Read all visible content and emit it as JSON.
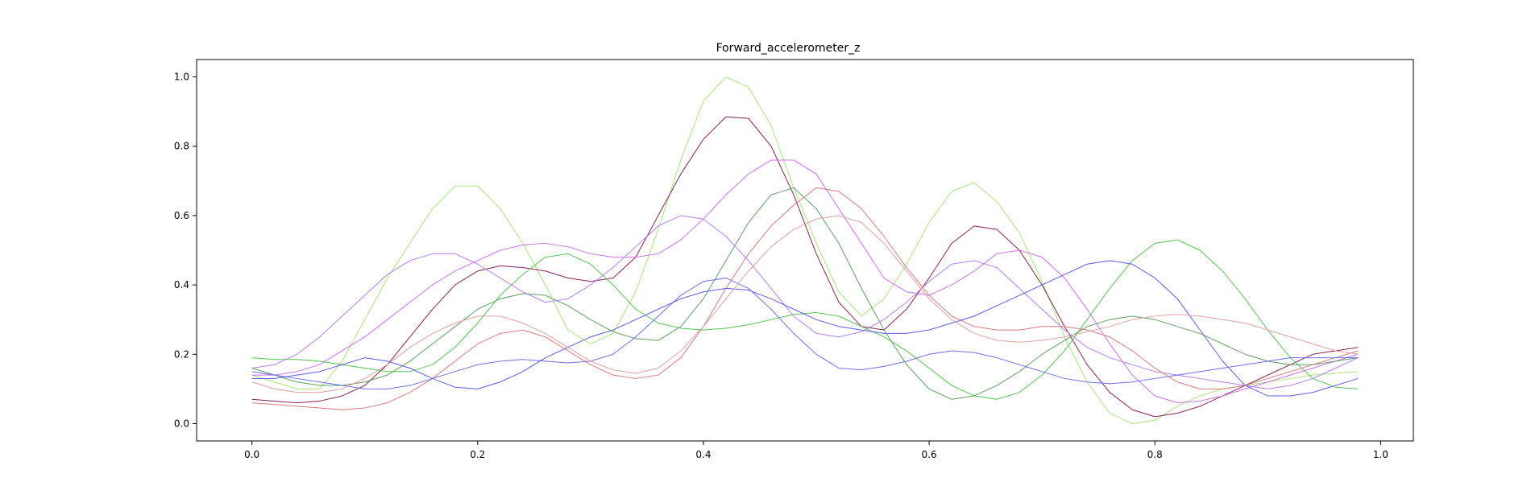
{
  "chart_data": {
    "type": "line",
    "title": "Forward_accelerometer_z",
    "xlabel": "",
    "ylabel": "",
    "xlim": [
      -0.049,
      1.029
    ],
    "ylim": [
      -0.05,
      1.05
    ],
    "xticks": [
      0.0,
      0.2,
      0.4,
      0.6,
      0.8,
      1.0
    ],
    "xtick_labels": [
      "0.0",
      "0.2",
      "0.4",
      "0.6",
      "0.8",
      "1.0"
    ],
    "yticks": [
      0.0,
      0.2,
      0.4,
      0.6,
      0.8,
      1.0
    ],
    "ytick_labels": [
      "0.0",
      "0.2",
      "0.4",
      "0.6",
      "0.8",
      "1.0"
    ],
    "grid": false,
    "legend": "none",
    "x": [
      0.0,
      0.02,
      0.04,
      0.06,
      0.08,
      0.1,
      0.12,
      0.14,
      0.16,
      0.18,
      0.2,
      0.22,
      0.24,
      0.26,
      0.28,
      0.3,
      0.32,
      0.34,
      0.36,
      0.38,
      0.4,
      0.42,
      0.44,
      0.46,
      0.48,
      0.5,
      0.52,
      0.54,
      0.56,
      0.58,
      0.6,
      0.62,
      0.64,
      0.66,
      0.68,
      0.7,
      0.72,
      0.74,
      0.76,
      0.78,
      0.8,
      0.82,
      0.84,
      0.86,
      0.88,
      0.9,
      0.92,
      0.94,
      0.96,
      0.98
    ],
    "series": [
      {
        "color": "#a8e67a",
        "values": [
          0.14,
          0.12,
          0.1,
          0.1,
          0.18,
          0.3,
          0.42,
          0.52,
          0.62,
          0.685,
          0.685,
          0.62,
          0.52,
          0.4,
          0.27,
          0.23,
          0.26,
          0.38,
          0.56,
          0.76,
          0.93,
          1.0,
          0.97,
          0.86,
          0.68,
          0.52,
          0.38,
          0.31,
          0.36,
          0.46,
          0.58,
          0.67,
          0.695,
          0.64,
          0.55,
          0.41,
          0.25,
          0.12,
          0.03,
          0.0,
          0.01,
          0.05,
          0.08,
          0.1,
          0.11,
          0.12,
          0.13,
          0.14,
          0.145,
          0.15
        ]
      },
      {
        "color": "#8b2252",
        "values": [
          0.07,
          0.065,
          0.06,
          0.065,
          0.08,
          0.11,
          0.17,
          0.25,
          0.33,
          0.4,
          0.44,
          0.455,
          0.45,
          0.44,
          0.42,
          0.41,
          0.42,
          0.48,
          0.6,
          0.72,
          0.82,
          0.885,
          0.88,
          0.8,
          0.66,
          0.49,
          0.35,
          0.28,
          0.27,
          0.33,
          0.42,
          0.52,
          0.57,
          0.56,
          0.5,
          0.4,
          0.28,
          0.17,
          0.09,
          0.04,
          0.02,
          0.03,
          0.05,
          0.08,
          0.11,
          0.14,
          0.17,
          0.2,
          0.21,
          0.22
        ]
      },
      {
        "color": "#cf6fef",
        "values": [
          0.14,
          0.14,
          0.15,
          0.17,
          0.21,
          0.25,
          0.3,
          0.35,
          0.4,
          0.44,
          0.47,
          0.5,
          0.515,
          0.52,
          0.51,
          0.49,
          0.48,
          0.48,
          0.49,
          0.53,
          0.59,
          0.66,
          0.72,
          0.76,
          0.76,
          0.72,
          0.62,
          0.52,
          0.42,
          0.38,
          0.37,
          0.4,
          0.44,
          0.49,
          0.5,
          0.48,
          0.42,
          0.33,
          0.23,
          0.14,
          0.08,
          0.06,
          0.065,
          0.08,
          0.1,
          0.12,
          0.14,
          0.16,
          0.18,
          0.2
        ]
      },
      {
        "color": "#5fa05f",
        "values": [
          0.16,
          0.14,
          0.12,
          0.11,
          0.11,
          0.12,
          0.14,
          0.18,
          0.23,
          0.28,
          0.33,
          0.36,
          0.375,
          0.37,
          0.34,
          0.3,
          0.265,
          0.245,
          0.24,
          0.28,
          0.36,
          0.47,
          0.58,
          0.66,
          0.68,
          0.62,
          0.52,
          0.39,
          0.27,
          0.17,
          0.1,
          0.07,
          0.08,
          0.11,
          0.15,
          0.2,
          0.24,
          0.28,
          0.3,
          0.31,
          0.3,
          0.28,
          0.26,
          0.23,
          0.2,
          0.18,
          0.17,
          0.17,
          0.18,
          0.19
        ]
      },
      {
        "color": "#52c452",
        "values": [
          0.19,
          0.185,
          0.185,
          0.18,
          0.17,
          0.16,
          0.15,
          0.15,
          0.17,
          0.22,
          0.29,
          0.37,
          0.43,
          0.48,
          0.49,
          0.46,
          0.4,
          0.33,
          0.29,
          0.275,
          0.27,
          0.275,
          0.285,
          0.3,
          0.315,
          0.32,
          0.31,
          0.28,
          0.25,
          0.21,
          0.16,
          0.11,
          0.08,
          0.07,
          0.09,
          0.14,
          0.21,
          0.3,
          0.39,
          0.47,
          0.52,
          0.53,
          0.5,
          0.44,
          0.36,
          0.27,
          0.19,
          0.13,
          0.105,
          0.1
        ]
      },
      {
        "color": "#b57ef0",
        "values": [
          0.16,
          0.17,
          0.2,
          0.25,
          0.31,
          0.37,
          0.43,
          0.47,
          0.49,
          0.49,
          0.46,
          0.42,
          0.38,
          0.35,
          0.36,
          0.4,
          0.45,
          0.51,
          0.57,
          0.6,
          0.59,
          0.54,
          0.47,
          0.39,
          0.31,
          0.26,
          0.25,
          0.265,
          0.3,
          0.35,
          0.41,
          0.46,
          0.47,
          0.45,
          0.39,
          0.33,
          0.27,
          0.22,
          0.19,
          0.17,
          0.15,
          0.14,
          0.13,
          0.12,
          0.11,
          0.1,
          0.11,
          0.13,
          0.16,
          0.19
        ]
      },
      {
        "color": "#d97b7b",
        "values": [
          0.06,
          0.055,
          0.05,
          0.045,
          0.04,
          0.045,
          0.06,
          0.09,
          0.13,
          0.18,
          0.23,
          0.26,
          0.27,
          0.25,
          0.21,
          0.17,
          0.14,
          0.13,
          0.14,
          0.19,
          0.28,
          0.39,
          0.49,
          0.57,
          0.63,
          0.68,
          0.67,
          0.62,
          0.54,
          0.45,
          0.37,
          0.31,
          0.28,
          0.27,
          0.27,
          0.28,
          0.28,
          0.27,
          0.25,
          0.21,
          0.16,
          0.12,
          0.1,
          0.1,
          0.11,
          0.13,
          0.15,
          0.17,
          0.19,
          0.21
        ]
      },
      {
        "color": "#6f6fe8",
        "values": [
          0.15,
          0.14,
          0.13,
          0.12,
          0.11,
          0.1,
          0.1,
          0.11,
          0.13,
          0.15,
          0.17,
          0.18,
          0.185,
          0.18,
          0.175,
          0.18,
          0.2,
          0.25,
          0.31,
          0.37,
          0.41,
          0.42,
          0.39,
          0.33,
          0.26,
          0.2,
          0.16,
          0.155,
          0.165,
          0.18,
          0.2,
          0.21,
          0.205,
          0.19,
          0.17,
          0.15,
          0.13,
          0.12,
          0.115,
          0.12,
          0.13,
          0.14,
          0.15,
          0.16,
          0.17,
          0.18,
          0.19,
          0.19,
          0.19,
          0.19
        ]
      },
      {
        "color": "#5c5ce6",
        "values": [
          0.13,
          0.13,
          0.14,
          0.15,
          0.17,
          0.19,
          0.18,
          0.16,
          0.13,
          0.105,
          0.1,
          0.12,
          0.15,
          0.19,
          0.22,
          0.25,
          0.27,
          0.3,
          0.33,
          0.36,
          0.38,
          0.39,
          0.385,
          0.36,
          0.33,
          0.3,
          0.28,
          0.27,
          0.26,
          0.26,
          0.27,
          0.29,
          0.31,
          0.34,
          0.37,
          0.4,
          0.43,
          0.46,
          0.47,
          0.46,
          0.42,
          0.36,
          0.27,
          0.18,
          0.11,
          0.08,
          0.08,
          0.09,
          0.11,
          0.13
        ]
      },
      {
        "color": "#e0a0a0",
        "values": [
          0.12,
          0.1,
          0.09,
          0.09,
          0.1,
          0.13,
          0.17,
          0.22,
          0.26,
          0.29,
          0.31,
          0.31,
          0.29,
          0.26,
          0.22,
          0.18,
          0.155,
          0.145,
          0.16,
          0.21,
          0.28,
          0.36,
          0.44,
          0.51,
          0.56,
          0.59,
          0.6,
          0.58,
          0.52,
          0.44,
          0.36,
          0.3,
          0.26,
          0.24,
          0.235,
          0.24,
          0.25,
          0.265,
          0.28,
          0.3,
          0.31,
          0.315,
          0.31,
          0.3,
          0.29,
          0.27,
          0.25,
          0.23,
          0.21,
          0.2
        ]
      }
    ]
  }
}
